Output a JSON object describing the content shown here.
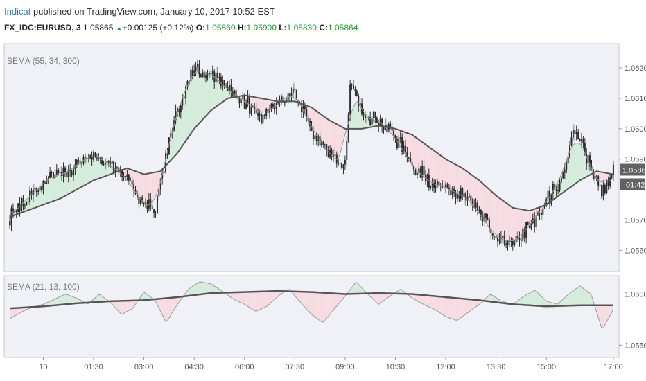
{
  "header": {
    "author": "Indicat",
    "published_text": "published on TradingView.com, January 10, 2017 10:52 EST",
    "symbol": "FX_IDC:EURUSD, 3",
    "last_price": "1.05865",
    "change_up_icon": "triangle-up-icon",
    "change": "+0.00125 (+0.12%)",
    "open_label": "O:",
    "open_value": "1.05860",
    "high_label": "H:",
    "high_value": "1.05900",
    "low_label": "L:",
    "low_value": "1.05830",
    "close_label": "C:",
    "close_value": "1.05864"
  },
  "colors": {
    "background": "#ffffff",
    "pane_background": "#f0f1f7",
    "candle": "#2b2b2b",
    "sema_line": "#555555",
    "fill_up": "#d5ecdc",
    "fill_down": "#f6dce2",
    "band_line": "#9a9a9a",
    "price_line": "#b0b0b0",
    "price_label_bg": "#626262"
  },
  "chart_data": [
    {
      "type": "candlestick",
      "indicator_label": "SEMA (55, 34, 300)",
      "price_label": "1.05864",
      "timer_label": "01:42",
      "current_price": 1.05864,
      "ylim": [
        1.0553,
        1.0628
      ],
      "y_ticks": [
        "1.06200",
        "1.06100",
        "1.06000",
        "1.05900",
        "1.05700",
        "1.05600"
      ],
      "y_tick_values": [
        1.062,
        1.061,
        1.06,
        1.059,
        1.057,
        1.056
      ],
      "close_path": {
        "times": [
          "23:00",
          "00:00",
          "00:45",
          "01:30",
          "02:00",
          "02:30",
          "03:00",
          "03:20",
          "03:45",
          "04:10",
          "04:30",
          "05:00",
          "05:30",
          "06:00",
          "06:30",
          "07:00",
          "07:30",
          "08:00",
          "08:30",
          "09:00",
          "09:10",
          "09:30",
          "10:00",
          "10:30",
          "11:00",
          "11:30",
          "12:00",
          "12:30",
          "13:00",
          "13:30",
          "14:00",
          "14:30",
          "15:00",
          "15:30",
          "15:50",
          "16:10",
          "16:40",
          "17:00"
        ],
        "values": [
          1.0571,
          1.0582,
          1.0586,
          1.0592,
          1.0588,
          1.0583,
          1.0575,
          1.0574,
          1.0595,
          1.0612,
          1.062,
          1.0618,
          1.0613,
          1.0609,
          1.0604,
          1.0608,
          1.0612,
          1.06,
          1.0592,
          1.0588,
          1.0616,
          1.0605,
          1.0603,
          1.0597,
          1.0588,
          1.0583,
          1.058,
          1.0578,
          1.0572,
          1.0564,
          1.0562,
          1.0568,
          1.0576,
          1.0585,
          1.0599,
          1.0592,
          1.0579,
          1.05864
        ]
      },
      "sema_line": {
        "times": [
          "23:00",
          "00:30",
          "01:30",
          "02:30",
          "03:00",
          "03:30",
          "04:00",
          "04:30",
          "05:00",
          "05:30",
          "06:00",
          "06:30",
          "07:00",
          "07:30",
          "08:00",
          "08:30",
          "09:00",
          "09:30",
          "10:00",
          "10:30",
          "11:00",
          "11:30",
          "12:00",
          "12:30",
          "13:00",
          "13:30",
          "14:00",
          "14:30",
          "15:00",
          "15:30",
          "16:00",
          "16:30",
          "17:00"
        ],
        "values": [
          1.0571,
          1.0577,
          1.0583,
          1.0587,
          1.0585,
          1.0586,
          1.0592,
          1.06,
          1.0606,
          1.061,
          1.0611,
          1.061,
          1.0609,
          1.0609,
          1.0607,
          1.0603,
          1.06,
          1.06,
          1.0601,
          1.06,
          1.0598,
          1.0594,
          1.059,
          1.0587,
          1.0583,
          1.0578,
          1.0574,
          1.0573,
          1.0575,
          1.0579,
          1.0583,
          1.0586,
          1.0585
        ]
      }
    },
    {
      "type": "area",
      "indicator_label": "SEMA (21, 13, 100)",
      "ylim": [
        1.0538,
        1.0618
      ],
      "y_ticks": [
        "1.0600",
        "1.0550"
      ],
      "y_tick_values": [
        1.06,
        1.055
      ],
      "fast_line": {
        "times": [
          "23:00",
          "23:30",
          "00:00",
          "00:20",
          "00:40",
          "01:00",
          "01:20",
          "01:40",
          "02:00",
          "02:20",
          "02:40",
          "03:00",
          "03:20",
          "03:40",
          "04:00",
          "04:20",
          "04:40",
          "05:00",
          "05:20",
          "05:40",
          "06:00",
          "06:20",
          "06:40",
          "07:00",
          "07:20",
          "07:40",
          "08:00",
          "08:20",
          "08:40",
          "09:00",
          "09:20",
          "09:40",
          "10:00",
          "10:20",
          "10:40",
          "11:00",
          "11:20",
          "11:40",
          "12:00",
          "12:20",
          "12:40",
          "13:00",
          "13:20",
          "13:40",
          "14:00",
          "14:20",
          "14:40",
          "15:00",
          "15:20",
          "15:40",
          "16:00",
          "16:20",
          "16:40",
          "17:00"
        ],
        "values": [
          1.0576,
          1.0585,
          1.059,
          1.0595,
          1.06,
          1.0596,
          1.059,
          1.06,
          1.0592,
          1.058,
          1.0586,
          1.0602,
          1.0594,
          1.0572,
          1.059,
          1.0605,
          1.0612,
          1.061,
          1.0603,
          1.0595,
          1.059,
          1.0583,
          1.0588,
          1.0598,
          1.0605,
          1.0592,
          1.058,
          1.0572,
          1.0585,
          1.0598,
          1.0612,
          1.06,
          1.059,
          1.0598,
          1.0605,
          1.0596,
          1.059,
          1.0585,
          1.0578,
          1.0574,
          1.0582,
          1.059,
          1.06,
          1.0593,
          1.059,
          1.0598,
          1.0604,
          1.0593,
          1.059,
          1.06,
          1.0608,
          1.06,
          1.0565,
          1.0585
        ]
      },
      "slow_line": {
        "times": [
          "23:00",
          "00:00",
          "01:00",
          "02:00",
          "03:00",
          "04:00",
          "05:00",
          "06:00",
          "07:00",
          "08:00",
          "09:00",
          "10:00",
          "11:00",
          "12:00",
          "13:00",
          "14:00",
          "15:00",
          "16:00",
          "17:00"
        ],
        "values": [
          1.0586,
          1.0588,
          1.0591,
          1.0593,
          1.0594,
          1.0597,
          1.0601,
          1.0602,
          1.0603,
          1.0602,
          1.06,
          1.0601,
          1.06,
          1.0597,
          1.0594,
          1.059,
          1.0588,
          1.0589,
          1.0589
        ]
      }
    }
  ],
  "x_axis": {
    "tick_labels": [
      "10",
      "01:30",
      "03:00",
      "04:30",
      "06:00",
      "07:30",
      "09:00",
      "10:30",
      "12:00",
      "13:30",
      "15:00",
      "17:00"
    ],
    "tick_times": [
      "00:00",
      "01:30",
      "03:00",
      "04:30",
      "06:00",
      "07:30",
      "09:00",
      "10:30",
      "12:00",
      "13:30",
      "15:00",
      "17:00"
    ],
    "range": [
      "22:50",
      "17:10"
    ]
  }
}
